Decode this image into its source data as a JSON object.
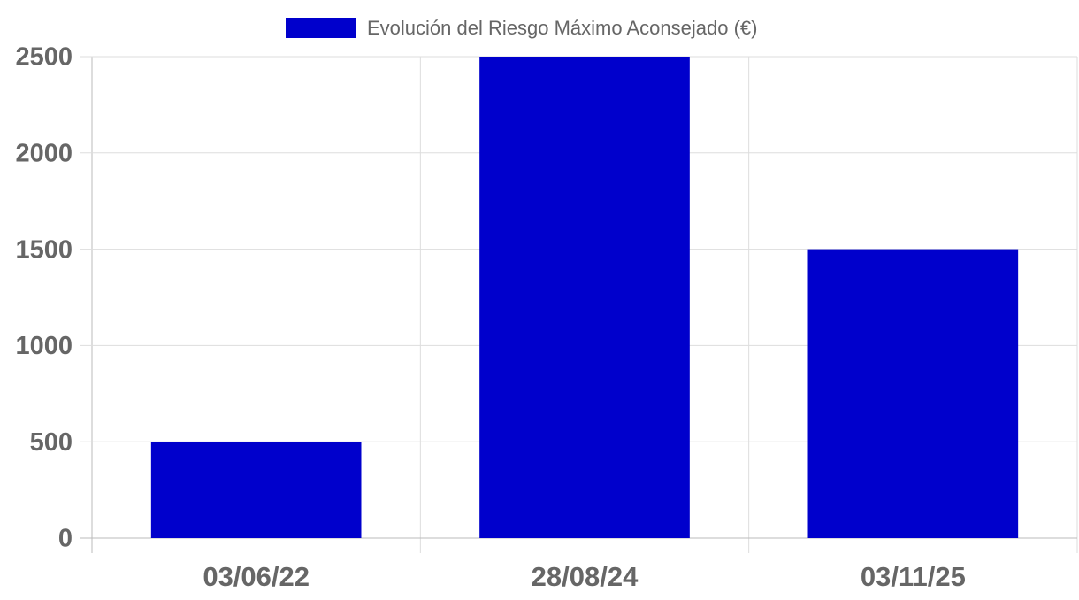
{
  "chart_data": {
    "type": "bar",
    "categories": [
      "03/06/22",
      "28/08/24",
      "03/11/25"
    ],
    "series": [
      {
        "name": "Evolución del Riesgo Máximo Aconsejado (€)",
        "color": "#0000cc",
        "values": [
          500,
          2500,
          1500
        ]
      }
    ],
    "ylim": [
      0,
      2500
    ],
    "yticks": [
      0,
      500,
      1000,
      1500,
      2000,
      2500
    ],
    "grid": true,
    "legend": "top"
  }
}
